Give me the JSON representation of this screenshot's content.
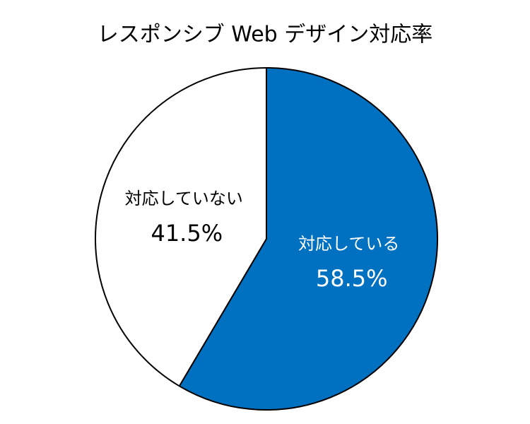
{
  "chart_data": {
    "type": "pie",
    "title": "レスポンシブ Web デザイン対応率",
    "categories": [
      "対応している",
      "対応していない"
    ],
    "values": [
      58.5,
      41.5
    ],
    "value_labels": [
      "58.5%",
      "41.5%"
    ],
    "colors": [
      "#0070c0",
      "#ffffff"
    ],
    "label_colors": [
      "#ffffff",
      "#000000"
    ]
  }
}
